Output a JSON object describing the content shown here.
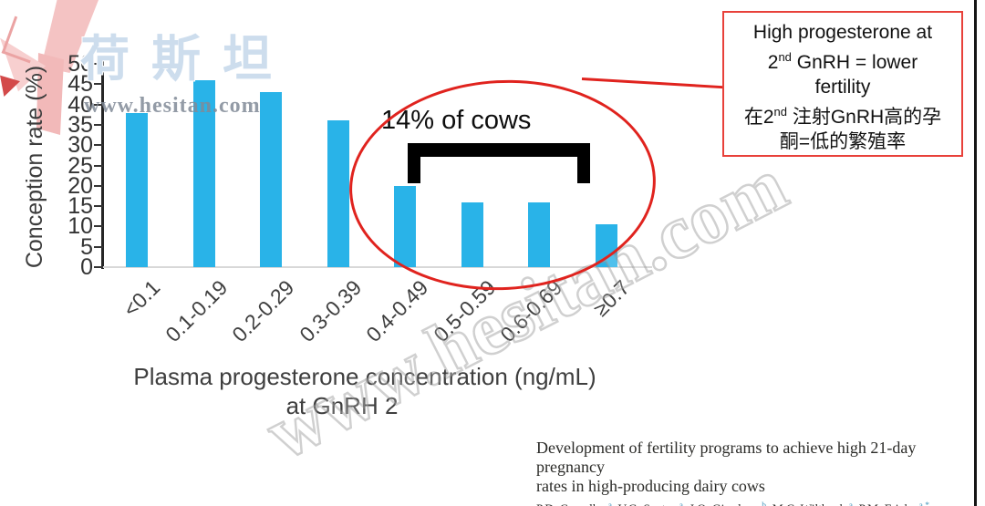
{
  "watermark": {
    "brand_cn": "荷斯坦",
    "site": "www.hesitan.com",
    "diagonal": "www.hesitan.com"
  },
  "chart_data": {
    "type": "bar",
    "categories": [
      "<0.1",
      "0.1-0.19",
      "0.2-0.29",
      "0.3-0.39",
      "0.4-0.49",
      "0.5-0.59",
      "0.6-0.69",
      "≥0.7"
    ],
    "values": [
      38,
      46,
      43,
      36,
      20,
      16,
      16,
      10.5
    ],
    "yticks": [
      0,
      5,
      10,
      15,
      20,
      25,
      30,
      35,
      40,
      45,
      50
    ],
    "ylim": [
      0,
      50
    ],
    "ylabel": "Conception rate (%)",
    "xlabel_line1": "Plasma progesterone concentration (ng/mL)",
    "xlabel_line2": "at GnRH 2",
    "bar_color": "#29b3e8",
    "grid": "off",
    "legend": "none"
  },
  "annotations": {
    "cows_label": "14% of cows",
    "ellipse_color": "#e0231e",
    "callout": {
      "line1": "High progesterone at",
      "line2_pre": "2",
      "line2_sup": "nd",
      "line2_post": " GnRH = lower",
      "line3": "fertility",
      "line4_pre": "在2",
      "line4_sup": "nd",
      "line4_post": " 注射GnRH高的孕",
      "line5": "酮=低的繁殖率"
    }
  },
  "citation": {
    "title_line1": "Development of fertility programs to achieve high 21-day pregnancy",
    "title_line2": "rates in high-producing dairy cows",
    "authors": [
      {
        "name": "P.D. Carvalho",
        "sup": "a"
      },
      {
        "name": "V.G. Santos",
        "sup": "a"
      },
      {
        "name": "J.O. Giordano",
        "sup": "b"
      },
      {
        "name": "M.C. Wiltbank",
        "sup": "a"
      },
      {
        "name": "P.M. Fricke",
        "sup": "a,*"
      }
    ]
  }
}
